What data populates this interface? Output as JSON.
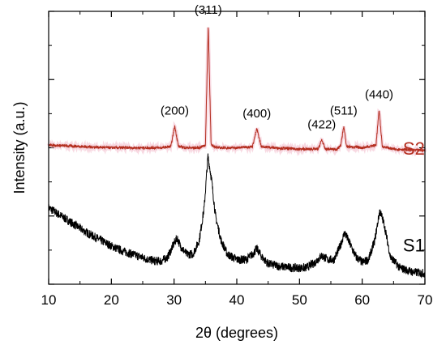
{
  "chart_data": {
    "type": "line",
    "xlabel": "2θ (degrees)",
    "ylabel": "Intensity (a.u.)",
    "xlim": [
      10,
      70
    ],
    "x_ticks": [
      10,
      20,
      30,
      40,
      50,
      60,
      70
    ],
    "ylim": [
      0,
      100
    ],
    "y_tick_labels_shown": false,
    "grid": false,
    "series": [
      {
        "name": "S1",
        "color": "#000000",
        "x": [
          10,
          12,
          14,
          16,
          18,
          20,
          22,
          24,
          26,
          27,
          28,
          29,
          30,
          30.5,
          31,
          32,
          33,
          34,
          34.8,
          35.4,
          36,
          36.6,
          37.5,
          38.5,
          40,
          41.5,
          42.5,
          43.2,
          44,
          45,
          47,
          49,
          51,
          52.5,
          53.5,
          54.5,
          55.5,
          56.5,
          57.2,
          58,
          59,
          60,
          61,
          62,
          62.8,
          63.5,
          64.5,
          66,
          68,
          70
        ],
        "y": [
          28,
          25,
          22,
          19,
          16.5,
          14,
          12,
          10.5,
          9,
          8.5,
          8.5,
          10,
          15,
          17,
          14,
          11,
          11,
          16,
          28,
          47,
          38,
          25,
          16,
          11,
          9,
          9,
          11,
          13,
          10,
          7.5,
          6.5,
          6,
          6,
          8,
          10.5,
          9,
          9,
          14,
          19,
          15,
          10,
          8,
          9,
          16,
          27,
          22,
          10,
          6,
          4.5,
          4
        ]
      },
      {
        "name": "S2",
        "color": "#b32d1e",
        "x": [
          10,
          15,
          20,
          25,
          28,
          29.5,
          30.1,
          30.7,
          32,
          34,
          35,
          35.45,
          35.9,
          37,
          40,
          42.5,
          43.2,
          43.9,
          46,
          50,
          53,
          53.55,
          54.1,
          56,
          56.6,
          57.05,
          57.5,
          60,
          62.2,
          62.7,
          63.2,
          65,
          70
        ],
        "y": [
          51,
          50.5,
          50,
          50,
          50,
          50.5,
          58,
          50.5,
          50,
          50,
          51,
          95,
          51,
          50,
          50,
          50.5,
          57,
          50.5,
          50,
          49.5,
          49.5,
          53,
          49.5,
          49.5,
          51,
          58,
          50.5,
          50,
          51,
          64,
          50.5,
          49.5,
          49
        ]
      }
    ],
    "series_labels": [
      {
        "text": "S1",
        "color": "#000000"
      },
      {
        "text": "S2",
        "color": "#b32d1e"
      }
    ],
    "annotations": [
      {
        "text": "(200)",
        "x": 30.1,
        "y": 58
      },
      {
        "text": "(311)",
        "x": 35.45,
        "y": 95
      },
      {
        "text": "(400)",
        "x": 43.2,
        "y": 57
      },
      {
        "text": "(422)",
        "x": 53.55,
        "y": 53
      },
      {
        "text": "(511)",
        "x": 57.05,
        "y": 58
      },
      {
        "text": "(440)",
        "x": 62.7,
        "y": 64
      }
    ]
  }
}
